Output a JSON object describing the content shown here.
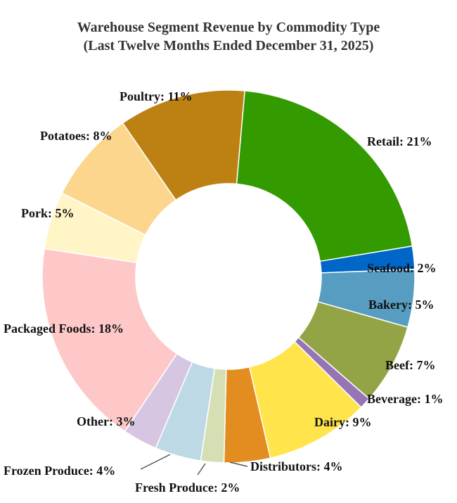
{
  "chart_data": {
    "type": "pie",
    "donut": true,
    "title": "Warehouse Segment Revenue by Commodity Type",
    "subtitle": "(Last Twelve Months Ended December 31, 2025)",
    "slices": [
      {
        "label": "Retail: 21%",
        "value": 21,
        "color": "#339a00"
      },
      {
        "label": "Seafood: 2%",
        "value": 2,
        "color": "#0067c9"
      },
      {
        "label": "Bakery: 5%",
        "value": 5,
        "color": "#579dc1"
      },
      {
        "label": "Beef: 7%",
        "value": 7,
        "color": "#93a446"
      },
      {
        "label": "Beverage: 1%",
        "value": 1,
        "color": "#9675b6"
      },
      {
        "label": "Dairy: 9%",
        "value": 9,
        "color": "#ffe44b"
      },
      {
        "label": "Distributors: 4%",
        "value": 4,
        "color": "#e38d20"
      },
      {
        "label": "Fresh Produce: 2%",
        "value": 2,
        "color": "#d6dfb3"
      },
      {
        "label": "Frozen Produce: 4%",
        "value": 4,
        "color": "#bcd9e5"
      },
      {
        "label": "Other: 3%",
        "value": 3,
        "color": "#d6c6e1"
      },
      {
        "label": "Packaged Foods: 18%",
        "value": 18,
        "color": "#ffc8c8"
      },
      {
        "label": "Pork: 5%",
        "value": 5,
        "color": "#fff5c6"
      },
      {
        "label": "Potatoes: 8%",
        "value": 8,
        "color": "#fcd68d"
      },
      {
        "label": "Poultry: 11%",
        "value": 11,
        "color": "#bc8112"
      }
    ]
  }
}
